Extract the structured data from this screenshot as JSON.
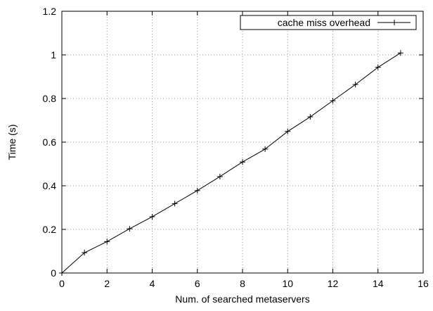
{
  "chart_data": {
    "type": "line",
    "xlabel": "Num. of searched metaservers",
    "ylabel": "Time (s)",
    "xlim": [
      0,
      16
    ],
    "ylim": [
      0,
      1.2
    ],
    "xticks": [
      "0",
      "2",
      "4",
      "6",
      "8",
      "10",
      "12",
      "14",
      "16"
    ],
    "yticks": [
      "0",
      "0.2",
      "0.4",
      "0.6",
      "0.8",
      "1",
      "1.2"
    ],
    "grid": true,
    "grid_style": "dotted",
    "legend_position": "top-right",
    "series": [
      {
        "name": "cache miss overhead",
        "color": "#000000",
        "marker": "plus",
        "x": [
          0,
          1,
          2,
          3,
          4,
          5,
          6,
          7,
          8,
          9,
          10,
          11,
          12,
          13,
          14,
          15
        ],
        "y": [
          0.0,
          0.093,
          0.144,
          0.203,
          0.258,
          0.318,
          0.378,
          0.442,
          0.509,
          0.568,
          0.649,
          0.716,
          0.79,
          0.864,
          0.943,
          1.009
        ]
      }
    ]
  }
}
